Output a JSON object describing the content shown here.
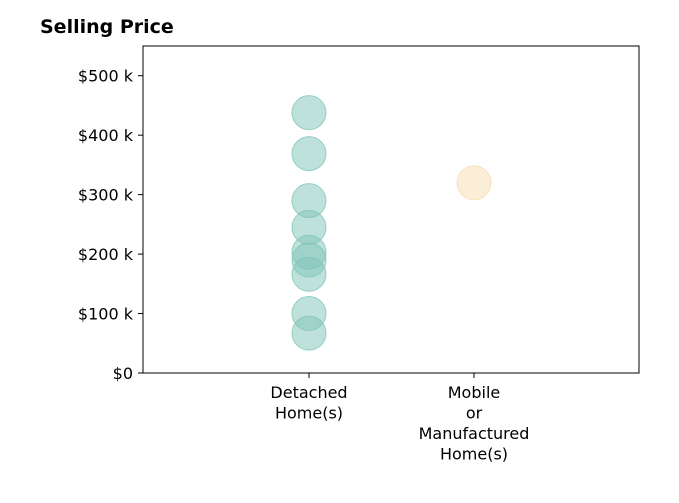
{
  "chart_data": {
    "type": "scatter",
    "title": "Selling Price",
    "xlabel": "",
    "ylabel": "",
    "ylim": [
      0,
      550000
    ],
    "yticks": [
      0,
      100000,
      200000,
      300000,
      400000,
      500000
    ],
    "ytick_labels": [
      "$0",
      "$100 k",
      "$200 k",
      "$300 k",
      "$400 k",
      "$500 k"
    ],
    "categories": [
      [
        "Detached",
        "Home(s)"
      ],
      [
        "Mobile",
        "or",
        "Manufactured",
        "Home(s)"
      ]
    ],
    "series": [
      {
        "category_index": 0,
        "color": "#7fc4b8",
        "values": [
          438000,
          369000,
          290000,
          245000,
          203000,
          190000,
          166000,
          100000,
          67000
        ]
      },
      {
        "category_index": 1,
        "color": "#f5deb0",
        "values": [
          320000
        ]
      }
    ],
    "grid": false,
    "legend": "none"
  }
}
